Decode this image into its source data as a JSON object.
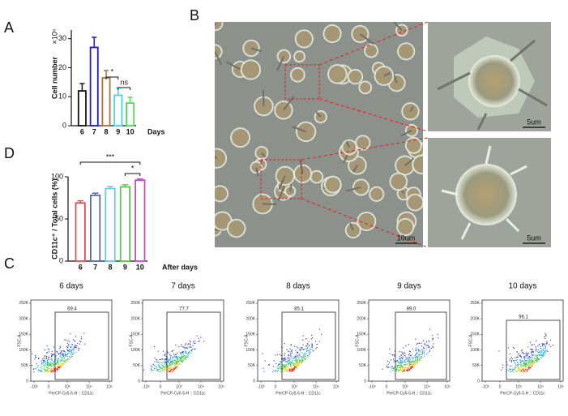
{
  "panel_labels": [
    "A",
    "B",
    "D",
    "C"
  ],
  "chart_data": [
    {
      "type": "bar",
      "ylabel": "Cell number",
      "yunit": "×10⁶",
      "xlabel": "Days",
      "categories": [
        "6",
        "7",
        "8",
        "9",
        "10"
      ],
      "values": [
        12,
        27,
        16.5,
        10.5,
        7.8
      ],
      "errors": [
        2.5,
        3.5,
        2.5,
        2.5,
        2
      ],
      "colors": [
        "#111111",
        "#1c1cd6",
        "#a8743e",
        "#3fd7ea",
        "#4fdc4f"
      ],
      "ylim": [
        0,
        33
      ],
      "yticks": [
        0,
        10,
        20,
        30
      ],
      "annotations": [
        "*",
        "ns"
      ]
    },
    {
      "type": "bar",
      "ylabel": "CD11c⁺ / Total cells  (%)",
      "xlabel": "After days",
      "categories": [
        "6",
        "7",
        "8",
        "9",
        "10"
      ],
      "values": [
        69,
        78,
        86,
        88,
        96
      ],
      "errors": [
        2.5,
        2.5,
        2.5,
        2.5,
        1.5
      ],
      "colors": [
        "#e05050",
        "#5a6ca0",
        "#6cc8e6",
        "#58c850",
        "#c050c8"
      ],
      "ylim": [
        0,
        100
      ],
      "yticks": [
        0,
        50,
        100
      ],
      "annotations": [
        "***",
        "*"
      ]
    }
  ],
  "micrograph": {
    "scale_main": "10um",
    "scale_inset_1": "5um",
    "scale_inset_2": "5um"
  },
  "flow": {
    "ylabel": "FSC-A",
    "xlabel": "PerCP-Cy5-5-H :: CD11c",
    "yticks": [
      "0",
      "50K",
      "100K",
      "150K",
      "200K",
      "250K"
    ],
    "xticks": [
      "-10³",
      "0",
      "10³",
      "10⁴",
      "10⁵"
    ],
    "panels": [
      {
        "title": "6 days",
        "gate": "69.4"
      },
      {
        "title": "7 days",
        "gate": "77.7"
      },
      {
        "title": "8 days",
        "gate": "85.1"
      },
      {
        "title": "9 days",
        "gate": "89.0"
      },
      {
        "title": "10 days",
        "gate": "96.1"
      }
    ]
  }
}
